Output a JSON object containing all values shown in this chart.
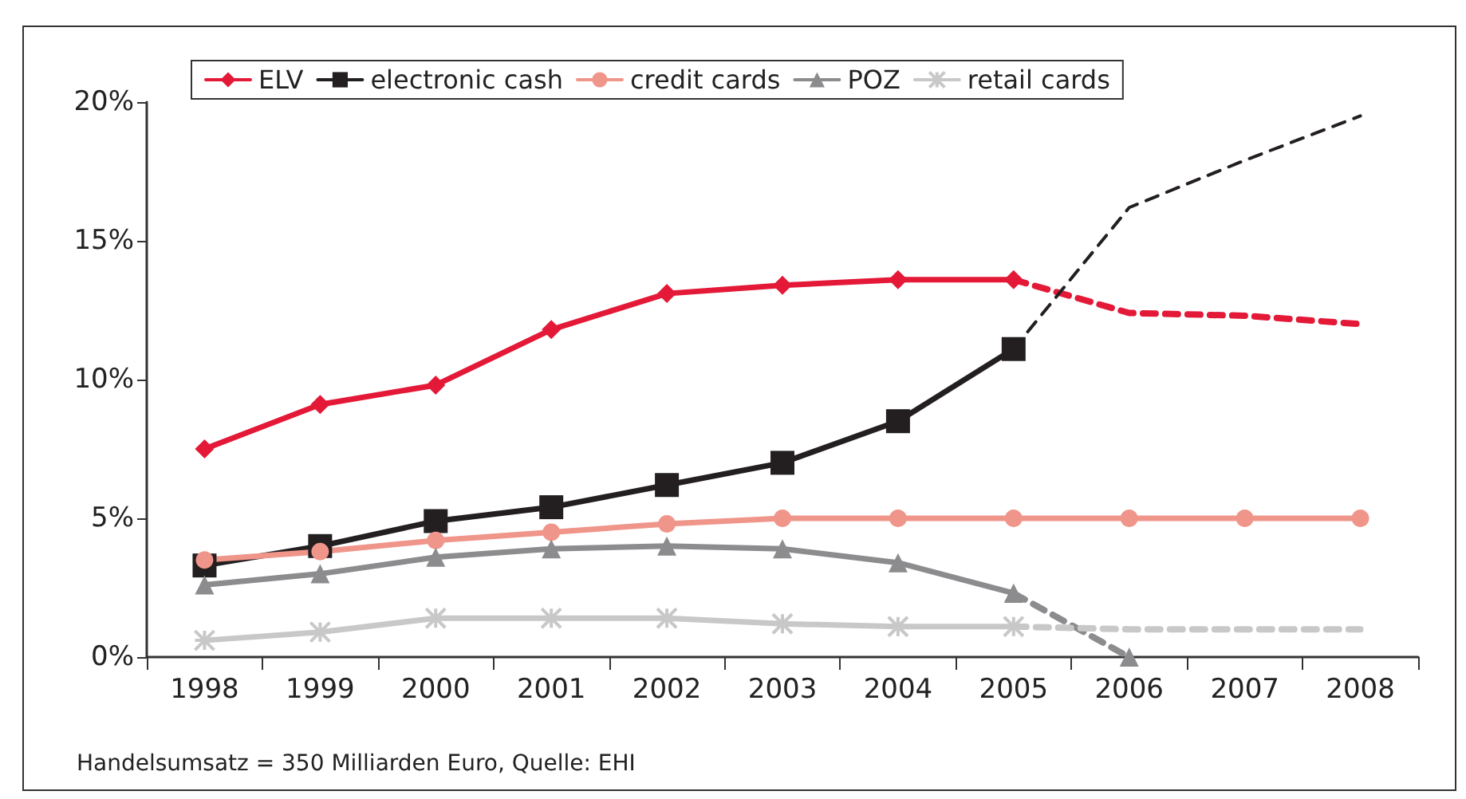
{
  "chart_data": {
    "type": "line",
    "categories": [
      "1998",
      "1999",
      "2000",
      "2001",
      "2002",
      "2003",
      "2004",
      "2005",
      "2006",
      "2007",
      "2008"
    ],
    "series": [
      {
        "name": "ELV",
        "color": "#e31937",
        "marker": "diamond",
        "line_style": "solid",
        "values": [
          7.5,
          9.1,
          9.8,
          11.8,
          13.1,
          13.4,
          13.6,
          13.6,
          null,
          null,
          null
        ]
      },
      {
        "name": "electronic cash",
        "color": "#231f20",
        "marker": "square",
        "line_style": "solid",
        "values": [
          3.3,
          4.0,
          4.9,
          5.4,
          6.2,
          7.0,
          8.5,
          11.1,
          null,
          null,
          null
        ]
      },
      {
        "name": "credit cards",
        "color": "#f0958a",
        "marker": "circle",
        "line_style": "solid",
        "values": [
          3.5,
          3.8,
          4.2,
          4.5,
          4.8,
          5,
          5,
          5,
          5,
          5,
          5
        ]
      },
      {
        "name": "POZ",
        "color": "#8c8c8f",
        "marker": "triangle",
        "line_style": "solid",
        "values": [
          2.6,
          3.0,
          3.6,
          3.9,
          4.0,
          3.9,
          3.4,
          2.3,
          null,
          null,
          null
        ]
      },
      {
        "name": "retail cards",
        "color": "#c8c8c8",
        "marker": "cross",
        "line_style": "solid",
        "values": [
          0.6,
          0.9,
          1.4,
          1.4,
          1.4,
          1.2,
          1.1,
          1.1,
          null,
          null,
          null
        ]
      },
      {
        "color": "#e31937",
        "marker": "none",
        "line_style": "dashed",
        "values": [
          null,
          null,
          null,
          null,
          null,
          null,
          null,
          13.6,
          12.4,
          12.3,
          12.0
        ]
      },
      {
        "color": "#231f20",
        "marker": "none",
        "line_style": "dashed",
        "values": [
          null,
          null,
          null,
          null,
          null,
          null,
          null,
          11.1,
          16.2,
          17.9,
          19.5
        ]
      },
      {
        "color": "#8c8c8f",
        "marker": "triangle",
        "line_style": "dashed",
        "values": [
          null,
          null,
          null,
          null,
          null,
          null,
          null,
          2.3,
          0,
          null,
          null
        ]
      },
      {
        "color": "#c8c8c8",
        "marker": "none",
        "line_style": "dashed",
        "values": [
          null,
          null,
          null,
          null,
          null,
          null,
          null,
          1.1,
          1,
          1,
          1
        ]
      }
    ],
    "ylim": [
      0,
      20
    ],
    "yticks": [
      {
        "value": 0,
        "label": "0%"
      },
      {
        "value": 5,
        "label": "5%"
      },
      {
        "value": 10,
        "label": "10%"
      },
      {
        "value": 15,
        "label": "15%"
      },
      {
        "value": 20,
        "label": "20%"
      }
    ],
    "grid": false,
    "legend": "top left",
    "annotations": [
      "Handelsumsatz = 350 Milliarden Euro, Quelle: EHI"
    ]
  }
}
